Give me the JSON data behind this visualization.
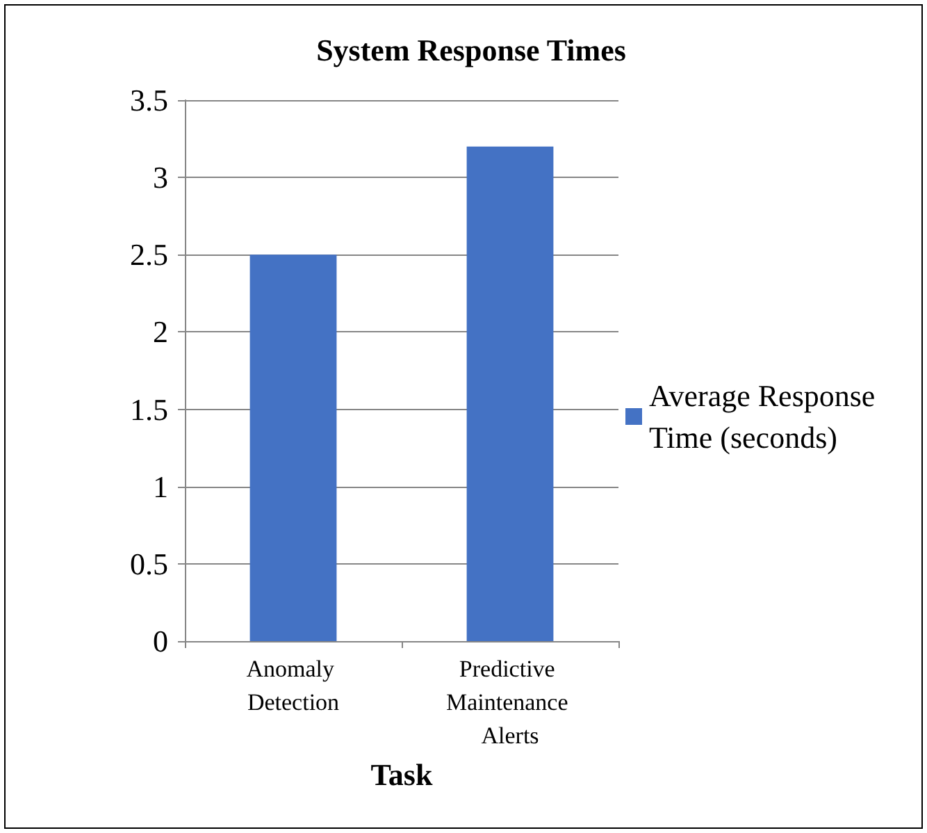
{
  "chart_data": {
    "type": "bar",
    "title": "System Response Times",
    "xlabel": "Task",
    "categories": [
      "Anomaly Detection",
      "Predictive Maintenance Alerts"
    ],
    "series": [
      {
        "name": "Average Response Time (seconds)",
        "color": "#4472c4",
        "values": [
          2.5,
          3.2
        ]
      }
    ],
    "ylim": [
      0,
      3.5
    ],
    "yticks": [
      0,
      0.5,
      1,
      1.5,
      2,
      2.5,
      3,
      3.5
    ],
    "grid": "y",
    "legend": "right"
  }
}
